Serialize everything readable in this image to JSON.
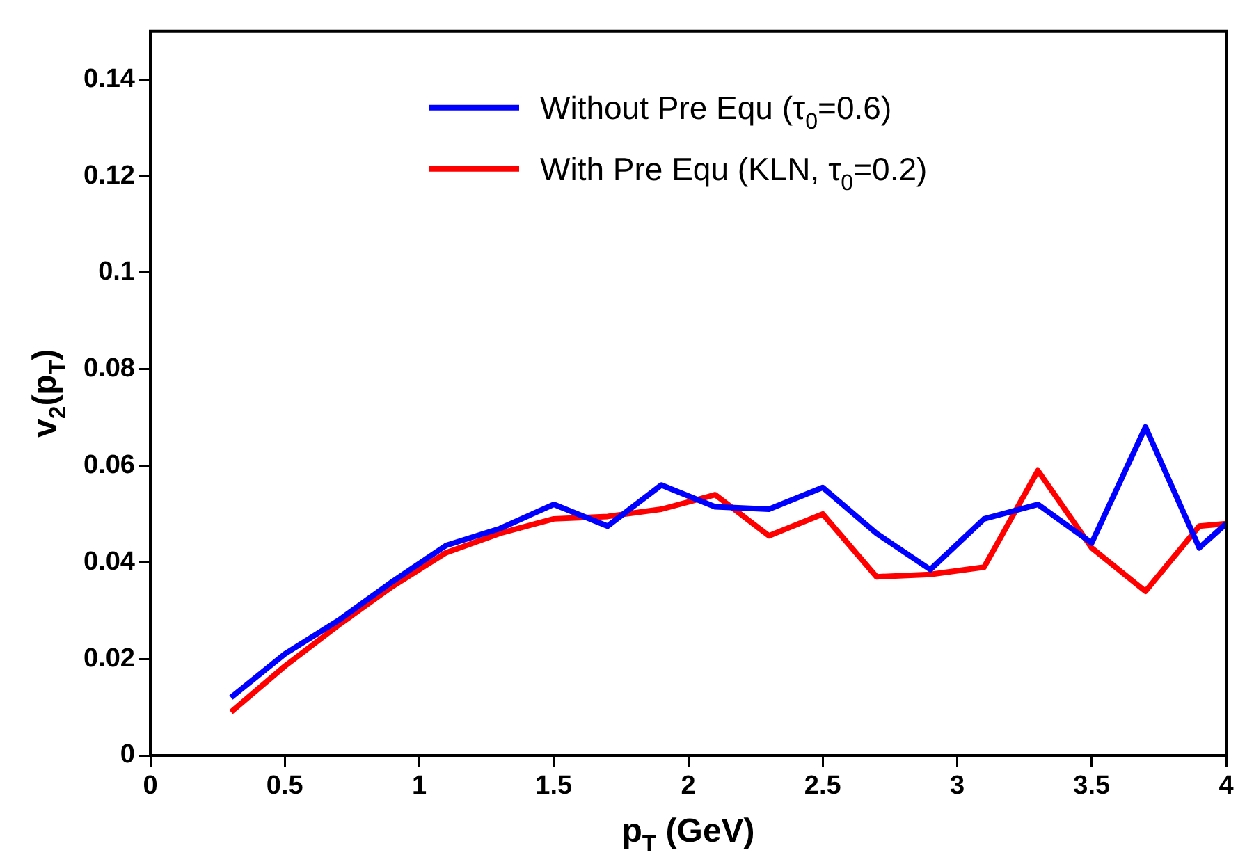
{
  "chart_data": {
    "type": "line",
    "xlabel": "p$_{T}$ (GeV)",
    "ylabel": "v$_{2}$(p$_{T}$)",
    "x": [
      0.3,
      0.5,
      0.7,
      0.9,
      1.1,
      1.3,
      1.5,
      1.7,
      1.9,
      2.1,
      2.3,
      2.5,
      2.7,
      2.9,
      3.1,
      3.3,
      3.5,
      3.7,
      3.9,
      4.0
    ],
    "series": [
      {
        "name": "Without Pre Equ (τ$_{0}$=0.6)",
        "color": "#0000ff",
        "values": [
          0.012,
          0.021,
          0.028,
          0.036,
          0.0435,
          0.047,
          0.052,
          0.0475,
          0.056,
          0.0515,
          0.051,
          0.0555,
          0.046,
          0.0385,
          0.049,
          0.052,
          0.044,
          0.068,
          0.043,
          0.048
        ]
      },
      {
        "name": "With Pre Equ (KLN, τ$_{0}$=0.2)",
        "color": "#ff0000",
        "values": [
          0.009,
          0.0185,
          0.027,
          0.035,
          0.042,
          0.046,
          0.049,
          0.0495,
          0.051,
          0.054,
          0.0455,
          0.05,
          0.037,
          0.0375,
          0.039,
          0.059,
          0.043,
          0.034,
          0.0475,
          0.048
        ]
      }
    ],
    "xlim": [
      0,
      4
    ],
    "xticks": [
      0,
      0.5,
      1,
      1.5,
      2,
      2.5,
      3,
      3.5,
      4
    ],
    "ylim": [
      0,
      0.15
    ],
    "yticks": [
      0,
      0.02,
      0.04,
      0.06,
      0.08,
      0.1,
      0.12,
      0.14
    ],
    "legend": "top",
    "grid": false,
    "marker": "none",
    "line_style": "solid"
  }
}
